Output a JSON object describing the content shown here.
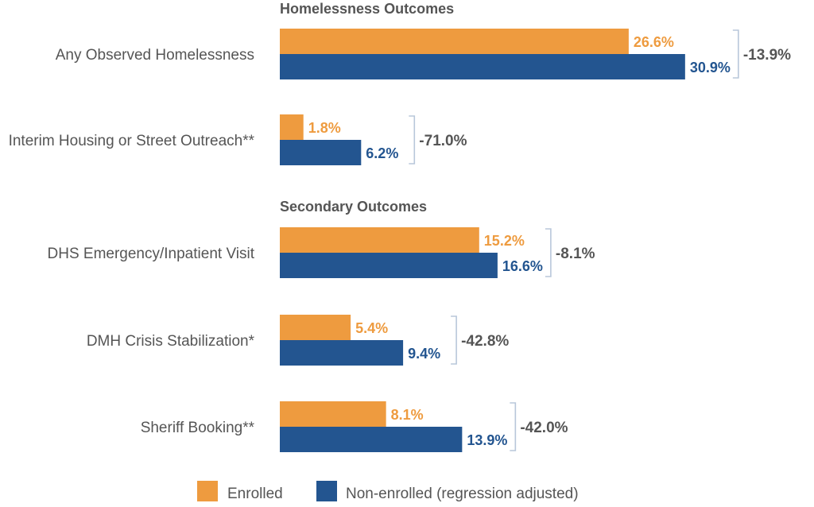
{
  "chart_data": {
    "type": "bar",
    "orientation": "horizontal",
    "colors": {
      "enrolled": "#EE9B3F",
      "non_enrolled": "#235590",
      "bracket": "#B8C7DA",
      "text": "#555555"
    },
    "legend": {
      "placement": "bottom",
      "items": [
        {
          "key": "enrolled",
          "label": "Enrolled"
        },
        {
          "key": "non_enrolled",
          "label": "Non-enrolled (regression adjusted)"
        }
      ]
    },
    "sections": [
      {
        "title": "Homelessness Outcomes",
        "categories": [
          {
            "label": "Any Observed Homelessness",
            "enrolled": 26.6,
            "non_enrolled": 30.9,
            "enrolled_label": "26.6%",
            "non_enrolled_label": "30.9%",
            "difference": "-13.9%"
          },
          {
            "label": "Interim Housing or Street Outreach**",
            "enrolled": 1.8,
            "non_enrolled": 6.2,
            "enrolled_label": "1.8%",
            "non_enrolled_label": "6.2%",
            "difference": "-71.0%"
          }
        ]
      },
      {
        "title": "Secondary Outcomes",
        "categories": [
          {
            "label": "DHS Emergency/Inpatient Visit",
            "enrolled": 15.2,
            "non_enrolled": 16.6,
            "enrolled_label": "15.2%",
            "non_enrolled_label": "16.6%",
            "difference": "-8.1%"
          },
          {
            "label": "DMH Crisis Stabilization*",
            "enrolled": 5.4,
            "non_enrolled": 9.4,
            "enrolled_label": "5.4%",
            "non_enrolled_label": "9.4%",
            "difference": "-42.8%"
          },
          {
            "label": "Sheriff Booking**",
            "enrolled": 8.1,
            "non_enrolled": 13.9,
            "enrolled_label": "8.1%",
            "non_enrolled_label": "13.9%",
            "difference": "-42.0%"
          }
        ]
      }
    ]
  }
}
